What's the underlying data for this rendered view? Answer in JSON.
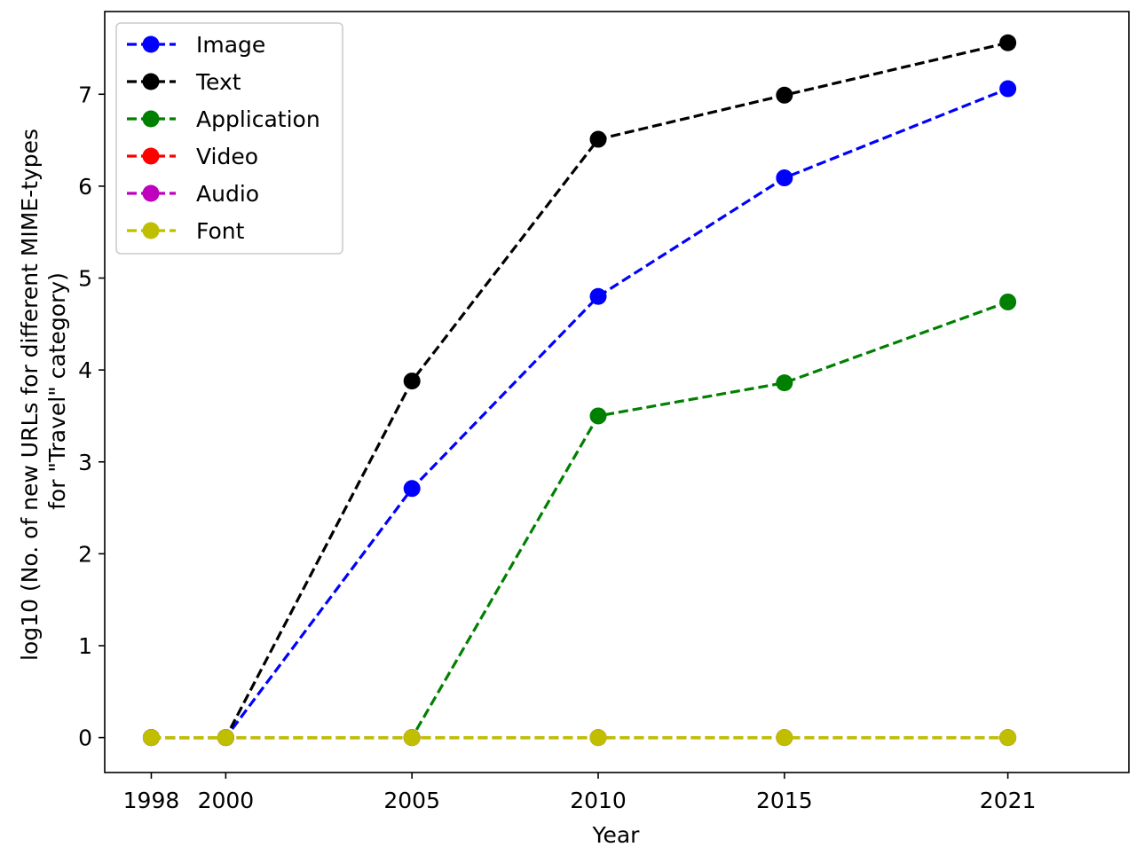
{
  "chart_data": {
    "type": "line",
    "title": "",
    "xlabel": "Year",
    "ylabel_line1": "log10 (No. of new URLs for different MIME-types",
    "ylabel_line2": "for \"Travel\" category)",
    "x": [
      1998,
      2000,
      2005,
      2010,
      2015,
      2021
    ],
    "x_tick_labels": [
      "1998",
      "2000",
      "2005",
      "2010",
      "2015",
      "2021"
    ],
    "xlim": [
      1996.75,
      2024.25
    ],
    "ylim": [
      -0.38,
      7.9
    ],
    "y_ticks": [
      0,
      1,
      2,
      3,
      4,
      5,
      6,
      7
    ],
    "y_tick_labels": [
      "0",
      "1",
      "2",
      "3",
      "4",
      "5",
      "6",
      "7"
    ],
    "grid": false,
    "legend_position": "top-left",
    "series": [
      {
        "name": "Image",
        "color": "#0000ff",
        "values": [
          0,
          0,
          2.71,
          4.8,
          6.09,
          7.06
        ]
      },
      {
        "name": "Text",
        "color": "#000000",
        "values": [
          0,
          0,
          3.88,
          6.51,
          6.99,
          7.56
        ]
      },
      {
        "name": "Application",
        "color": "#008000",
        "values": [
          0,
          0,
          0,
          3.5,
          3.86,
          4.74
        ]
      },
      {
        "name": "Video",
        "color": "#ff0000",
        "values": [
          0,
          0,
          0,
          0,
          0,
          0
        ]
      },
      {
        "name": "Audio",
        "color": "#bf00bf",
        "values": [
          0,
          0,
          0,
          0,
          0,
          0
        ]
      },
      {
        "name": "Font",
        "color": "#bfbf00",
        "values": [
          0,
          0,
          0,
          0,
          0,
          0
        ]
      }
    ]
  }
}
